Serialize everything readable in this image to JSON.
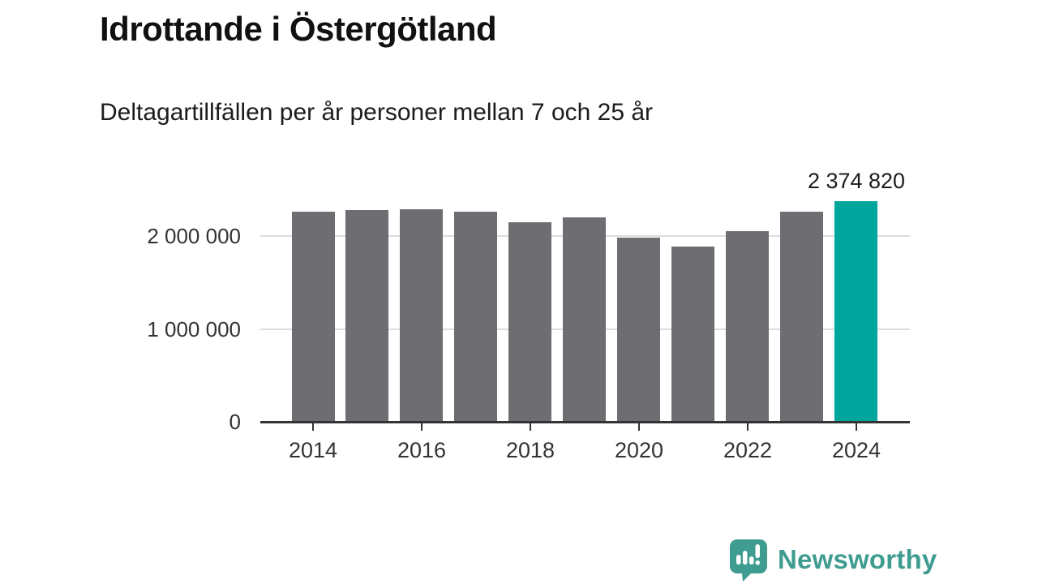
{
  "header": {
    "title": "Idrottande i Östergötland",
    "subtitle": "Deltagartillfällen per år personer mellan 7 och 25 år"
  },
  "branding": {
    "name": "Newsworthy",
    "logo_icon": "newsworthy-speech-bubble-bar-chart-icon",
    "color": "#3f9c90"
  },
  "chart_data": {
    "type": "bar",
    "title": "Idrottande i Östergötland",
    "subtitle": "Deltagartillfällen per år personer mellan 7 och 25 år",
    "categories": [
      "2014",
      "2015",
      "2016",
      "2017",
      "2018",
      "2019",
      "2020",
      "2021",
      "2022",
      "2023",
      "2024"
    ],
    "values": [
      2260000,
      2280000,
      2290000,
      2265000,
      2150000,
      2205000,
      1980000,
      1885000,
      2055000,
      2265000,
      2374820
    ],
    "highlight_index": 10,
    "highlight_value_label": "2 374 820",
    "bar_color": "#6e6d72",
    "highlight_color": "#00a69c",
    "grid_color": "#dcdcdc",
    "axis_color": "#333333",
    "y_ticks": [
      {
        "value": 0,
        "label": "0"
      },
      {
        "value": 1000000,
        "label": "1 000 000"
      },
      {
        "value": 2000000,
        "label": "2 000 000"
      }
    ],
    "x_tick_labels": [
      "2014",
      "2016",
      "2018",
      "2020",
      "2022",
      "2024"
    ],
    "ylim": [
      0,
      2450000
    ],
    "grid": "horizontal",
    "legend": "none"
  }
}
